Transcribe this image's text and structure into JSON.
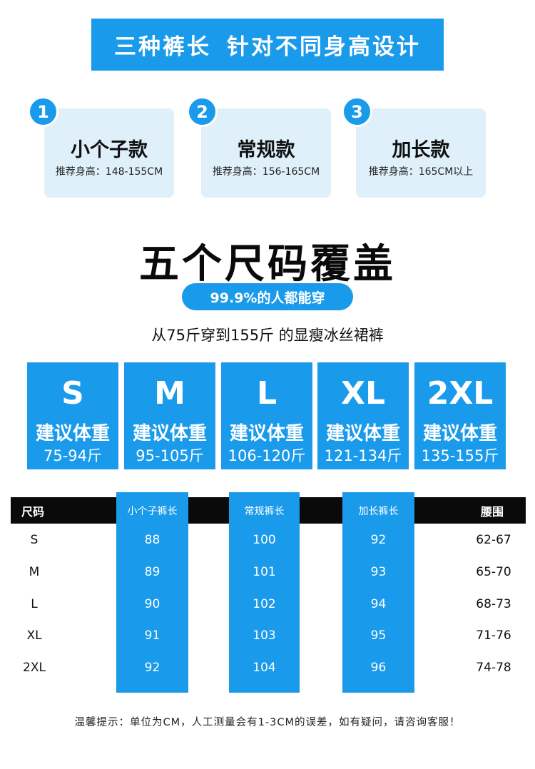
{
  "banner": {
    "part1": "三种裤长",
    "part2": "针对不同身高设计"
  },
  "lengths": [
    {
      "num": "1",
      "name": "小个子款",
      "height": "推荐身高：148-155CM"
    },
    {
      "num": "2",
      "name": "常规款",
      "height": "推荐身高：156-165CM"
    },
    {
      "num": "3",
      "name": "加长款",
      "height": "推荐身高：165CM以上"
    }
  ],
  "sizes_section": {
    "title": "五个尺码覆盖",
    "pill": "99.9%的人都能穿",
    "subtitle": "从75斤穿到155斤 的显瘦冰丝裙裤"
  },
  "size_cards": [
    {
      "size": "S",
      "label": "建议体重",
      "range": "75-94斤"
    },
    {
      "size": "M",
      "label": "建议体重",
      "range": "95-105斤"
    },
    {
      "size": "L",
      "label": "建议体重",
      "range": "106-120斤"
    },
    {
      "size": "XL",
      "label": "建议体重",
      "range": "121-134斤"
    },
    {
      "size": "2XL",
      "label": "建议体重",
      "range": "135-155斤"
    }
  ],
  "table": {
    "headers": [
      "尺码",
      "小个子裤长",
      "常规裤长",
      "加长裤长",
      "腰围"
    ],
    "rows": [
      [
        "S",
        "88",
        "100",
        "92",
        "62-67"
      ],
      [
        "M",
        "89",
        "101",
        "93",
        "65-70"
      ],
      [
        "L",
        "90",
        "102",
        "94",
        "68-73"
      ],
      [
        "XL",
        "91",
        "103",
        "95",
        "71-76"
      ],
      [
        "2XL",
        "92",
        "104",
        "96",
        "74-78"
      ]
    ]
  },
  "footer": "温馨提示：单位为CM，人工测量会有1-3CM的误差，如有疑问，请咨询客服！",
  "colors": {
    "accent": "#1a9aea",
    "light": "#dff0fb",
    "dark": "#0a0a0a"
  }
}
